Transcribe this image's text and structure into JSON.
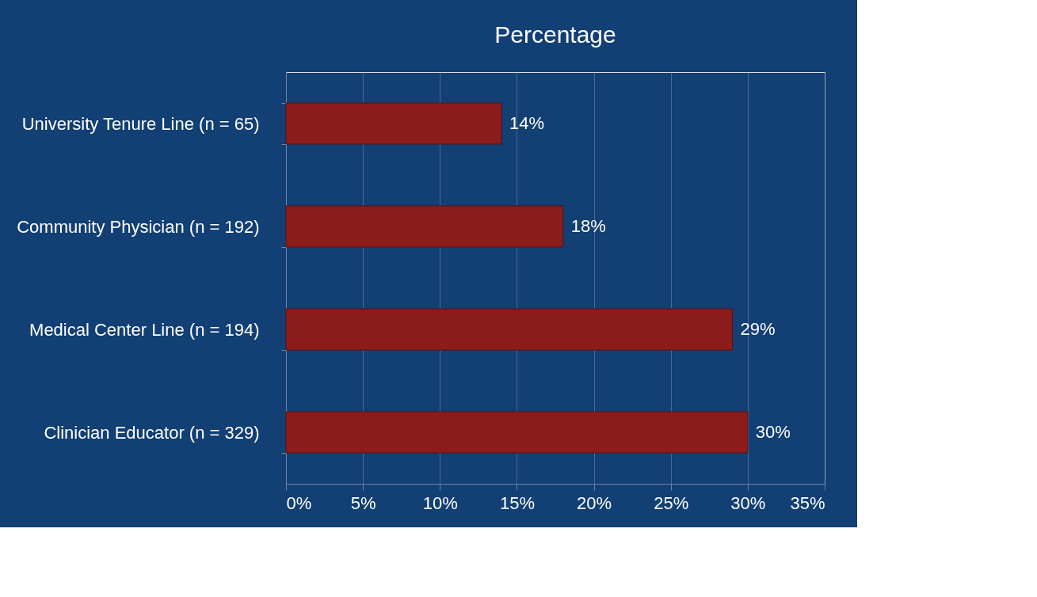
{
  "chart_data": {
    "type": "bar",
    "orientation": "horizontal",
    "title": "Percentage",
    "categories": [
      "University Tenure Line (n = 65)",
      "Community Physician (n = 192)",
      "Medical Center Line (n = 194)",
      "Clinician Educator (n = 329)"
    ],
    "values": [
      14,
      18,
      29,
      30
    ],
    "value_labels": [
      "14%",
      "18%",
      "29%",
      "30%"
    ],
    "color": "#8b1c1a",
    "xlim": [
      0,
      35
    ],
    "xticks": [
      {
        "value": 0,
        "label": "0%"
      },
      {
        "value": 5,
        "label": "5%"
      },
      {
        "value": 10,
        "label": "10%"
      },
      {
        "value": 15,
        "label": "15%"
      },
      {
        "value": 20,
        "label": "20%"
      },
      {
        "value": 25,
        "label": "25%"
      },
      {
        "value": 30,
        "label": "30%"
      },
      {
        "value": 35,
        "label": "35%"
      }
    ],
    "grid": "x"
  }
}
